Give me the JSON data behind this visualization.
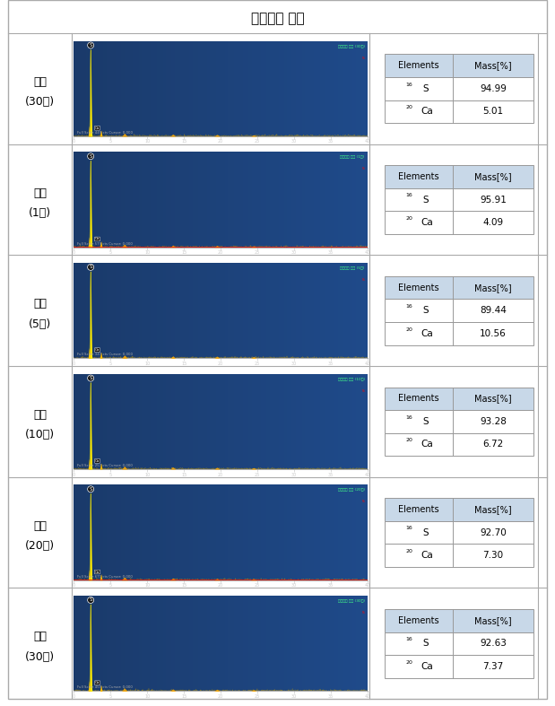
{
  "title": "무기성분 분석",
  "rows": [
    {
      "label_line1": "소성",
      "label_line2": "(30초)",
      "S_val": "94.99",
      "Ca_val": "5.01",
      "full_scale": "449"
    },
    {
      "label_line1": "소성",
      "label_line2": "(1분)",
      "S_val": "95.91",
      "Ca_val": "4.09",
      "full_scale": "579"
    },
    {
      "label_line1": "소성",
      "label_line2": "(5분)",
      "S_val": "89.44",
      "Ca_val": "10.56",
      "full_scale": "347"
    },
    {
      "label_line1": "소성",
      "label_line2": "(10분)",
      "S_val": "93.28",
      "Ca_val": "6.72",
      "full_scale": "257"
    },
    {
      "label_line1": "소성",
      "label_line2": "(20분)",
      "S_val": "92.70",
      "Ca_val": "7.30",
      "full_scale": "671"
    },
    {
      "label_line1": "소성",
      "label_line2": "(30분)",
      "S_val": "92.63",
      "Ca_val": "7.37",
      "full_scale": "459"
    }
  ],
  "spectrum_bg": "#1a3a6a",
  "spectrum_bg2": "#2255a0",
  "table_header_bg": "#c8d8e8",
  "outer_border_color": "#aaaaaa",
  "title_bg": "#e0eaf4",
  "row_divider_color": "#aaaaaa",
  "table_border_color": "#999999"
}
